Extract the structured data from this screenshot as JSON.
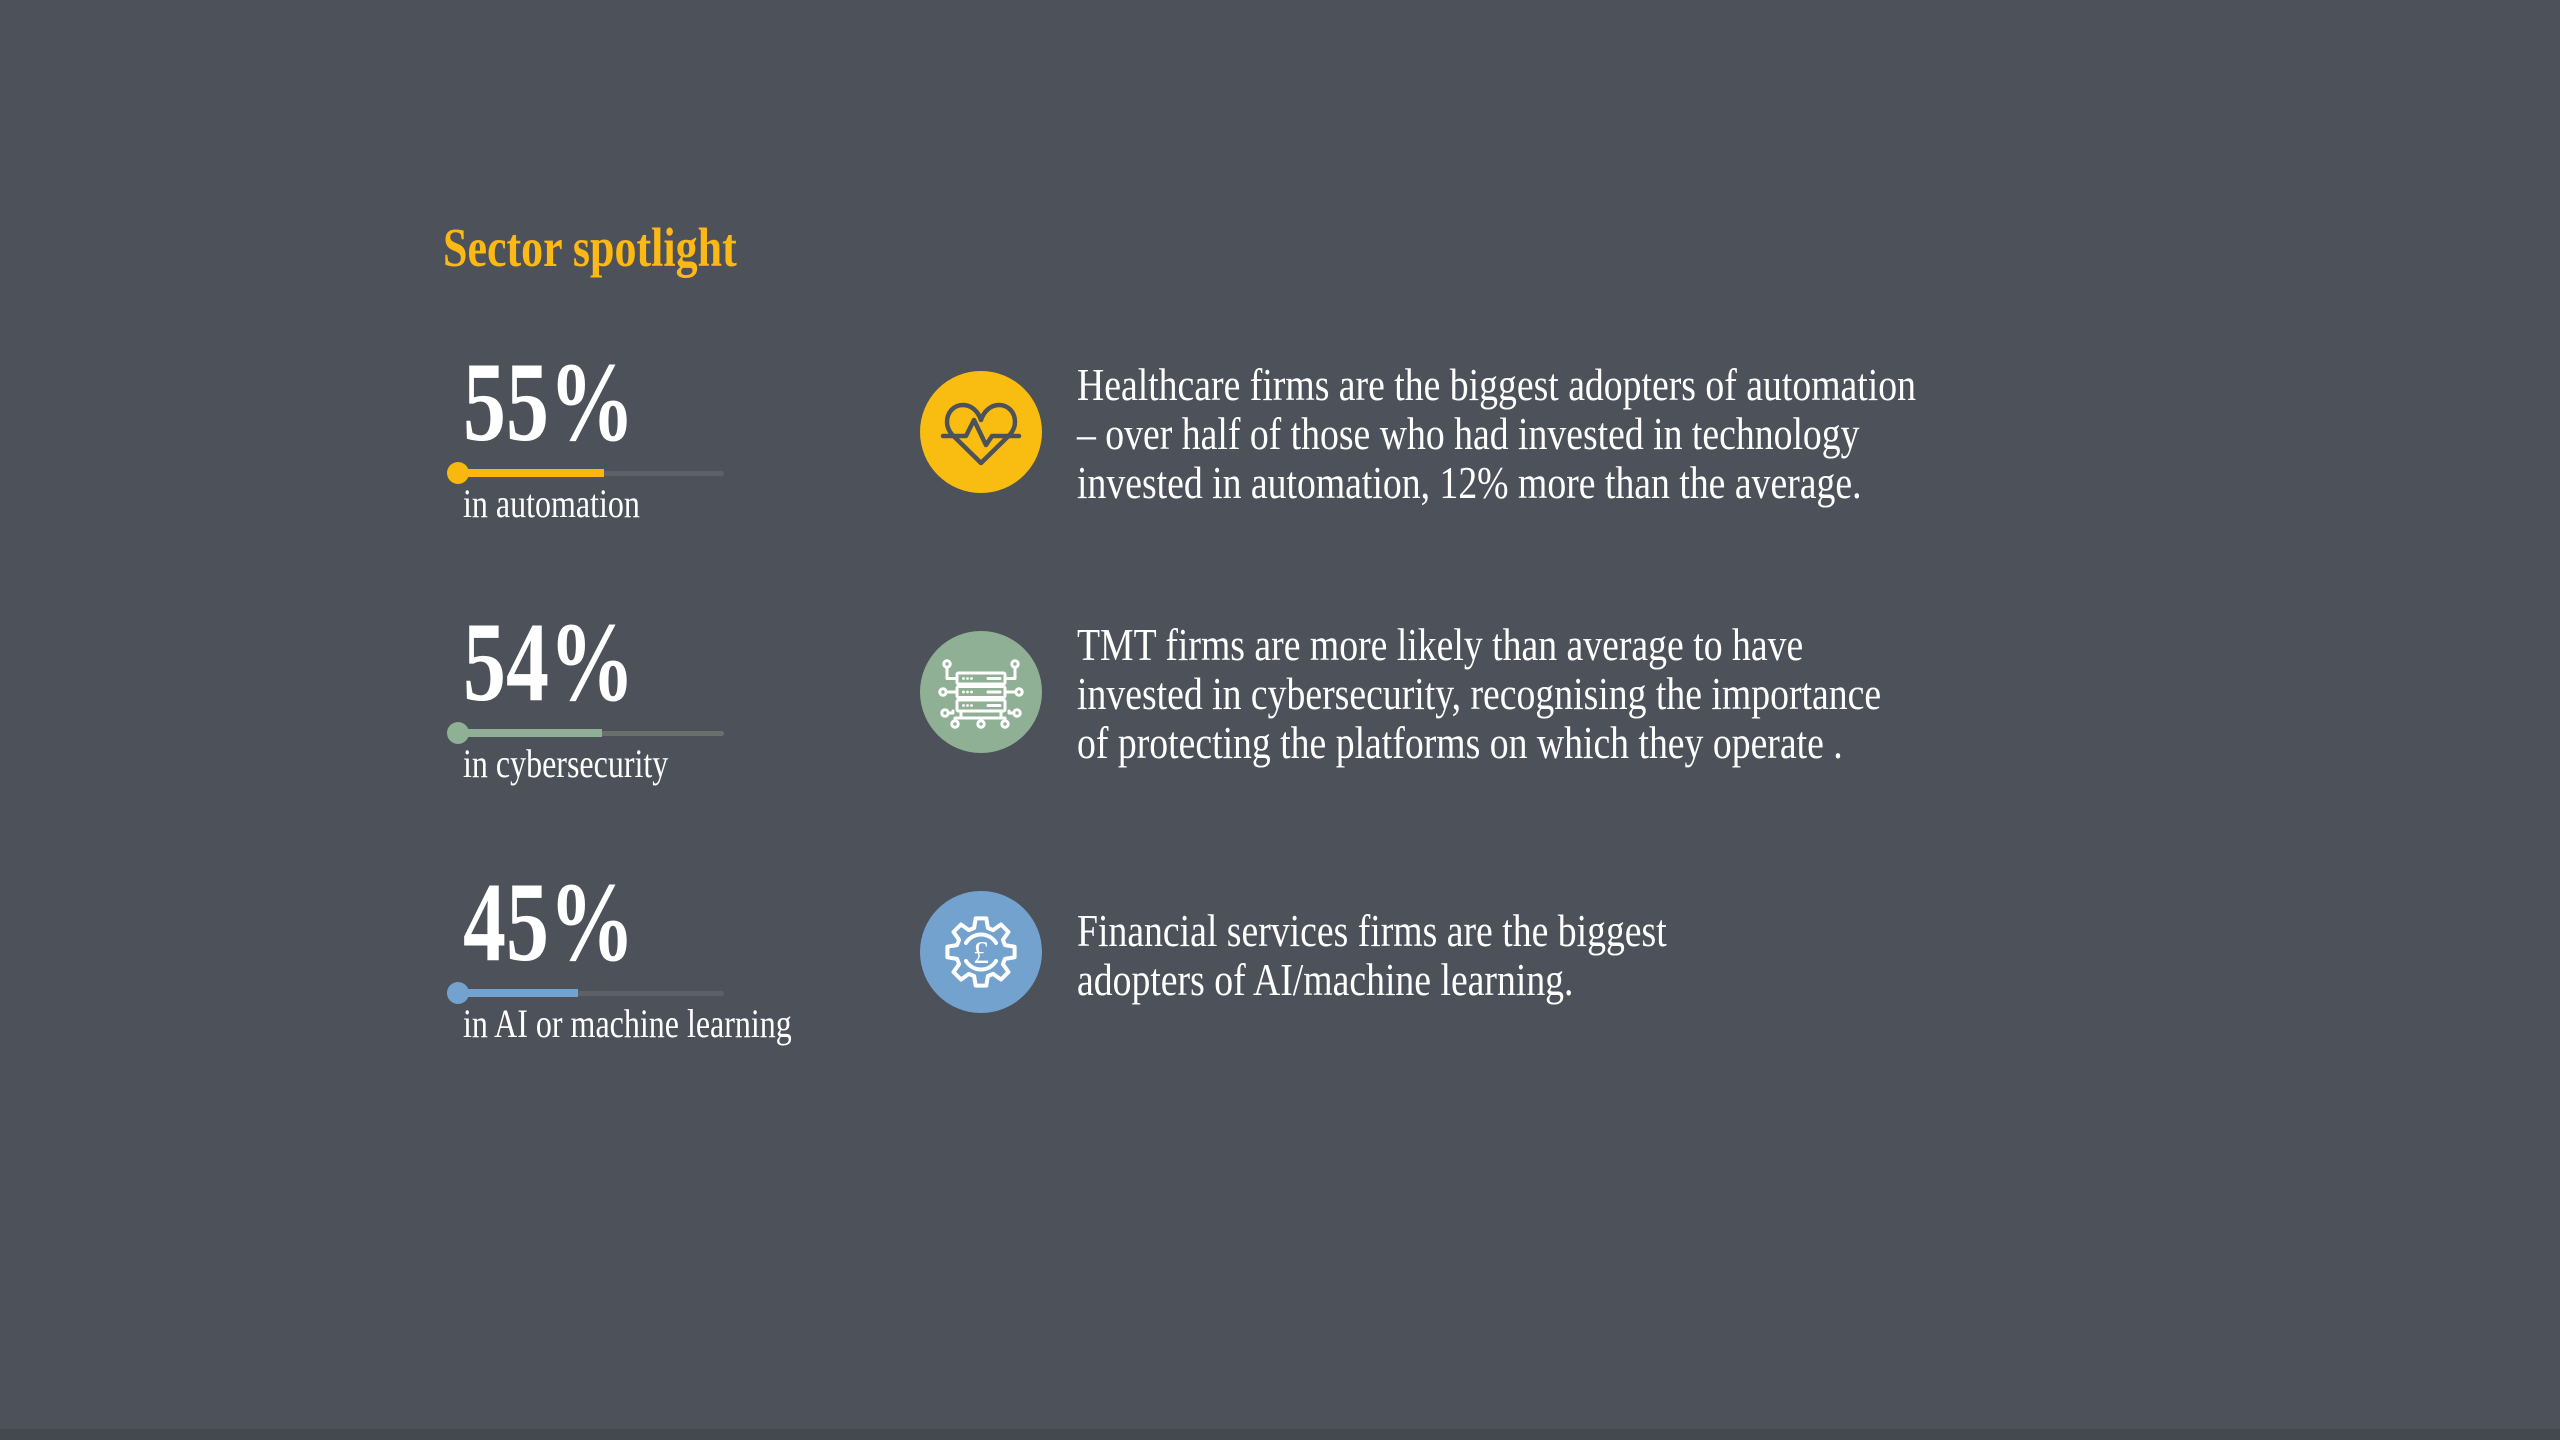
{
  "page": {
    "background": "#4d525a",
    "bottom_strip_color": "#45484f",
    "text_color": "#ffffff"
  },
  "title": {
    "text": "Sector spotlight",
    "color": "#fcb813"
  },
  "chart_data": {
    "type": "bar",
    "title": "Sector spotlight",
    "categories": [
      "in automation",
      "in cybersecurity",
      "in AI or machine learning"
    ],
    "values": [
      55,
      54,
      45
    ],
    "unit": "%",
    "xlim": [
      0,
      100
    ],
    "legend": "none",
    "bar_colors": [
      "#f9b80f",
      "#8fb094",
      "#74a2ce"
    ]
  },
  "stats": [
    {
      "value": "55%",
      "pct": 55,
      "label": "in automation",
      "accent": "#f9b80f",
      "track": "#5e6268",
      "icon": "heartbeat-icon",
      "icon_bg": "#f9bc10",
      "blurb": "Healthcare firms are the biggest adopters of automation\n– over half of those who had invested in technology\ninvested in automation, 12% more than the average."
    },
    {
      "value": "54%",
      "pct": 54,
      "label": "in cybersecurity",
      "accent": "#8fb094",
      "track": "#68706b",
      "icon": "server-circuit-icon",
      "icon_bg": "#8fb094",
      "blurb": "TMT firms are more likely than average to have\ninvested in cybersecurity, recognising the importance\nof protecting the platforms on which they operate ."
    },
    {
      "value": "45%",
      "pct": 45,
      "label": "in AI or machine learning",
      "accent": "#74a2ce",
      "track": "#5d6165",
      "icon": "gear-pound-icon",
      "icon_bg": "#74a2ce",
      "icon_glyph": "£",
      "blurb": "Financial services firms are the biggest\nadopters of AI/machine learning."
    }
  ]
}
